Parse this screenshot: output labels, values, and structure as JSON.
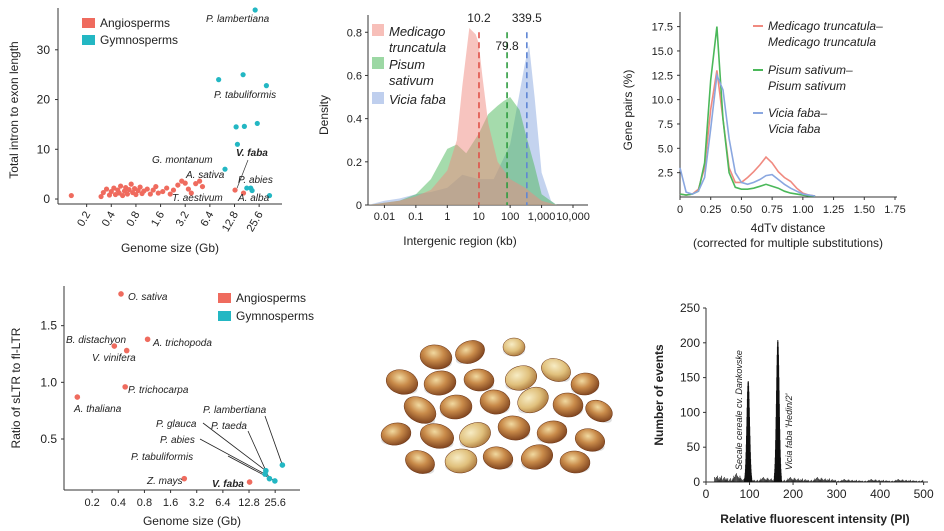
{
  "colors": {
    "angiosperm": "#ef6b5e",
    "gymnosperm": "#23b7c3",
    "medicago": "#f08a80",
    "pisum": "#4bb85a",
    "vicia": "#8aa7e0",
    "peak_dark": "#111111",
    "bean_base": "#b86a34",
    "bean_light": "#e6c98d"
  },
  "panels": {
    "a": {
      "xlabel": "Genome size (Gb)",
      "ylabel": "Total intron to exon length",
      "legend": [
        "Angiosperms",
        "Gymnosperms"
      ]
    },
    "b": {
      "xlabel": "Intergenic region (kb)",
      "ylabel": "Density",
      "legend": [
        {
          "line1": "Medicago",
          "line2": "truncatula"
        },
        {
          "line1": "Pisum",
          "line2": "sativum"
        },
        {
          "line1": "Vicia faba",
          "line2": ""
        }
      ],
      "medians": [
        "10.2",
        "79.8",
        "339.5"
      ]
    },
    "c": {
      "xlabel": "4dTv distance",
      "xlabel2": "(corrected for multiple substitutions)",
      "ylabel": "Gene pairs (%)",
      "legend": [
        {
          "line1": "Medicago truncatula–",
          "line2": "Medicago truncatula"
        },
        {
          "line1": "Pisum sativum–",
          "line2": "Pisum sativum"
        },
        {
          "line1": "Vicia faba–",
          "line2": "Vicia faba"
        }
      ]
    },
    "d": {
      "xlabel": "Genome size (Gb)",
      "ylabel": "Ratio of sLTR to fl-LTR",
      "legend": [
        "Angiosperms",
        "Gymnosperms"
      ]
    },
    "f": {
      "xlabel": "Relative fluorescent intensity (PI)",
      "ylabel": "Number of events",
      "peak1_label": "Secale cereale cv. Dankovske",
      "peak2_label": "Vicia faba 'Hedin/2'"
    }
  },
  "chart_data": [
    {
      "id": "a",
      "type": "scatter",
      "xlabel": "Genome size (Gb)",
      "ylabel": "Total intron to exon length",
      "x_scale": "log2",
      "x_ticks": [
        "0.2",
        "0.4",
        "0.8",
        "1.6",
        "3.2",
        "6.4",
        "12.8",
        "25.6"
      ],
      "y_ticks": [
        "0",
        "10",
        "20",
        "30"
      ],
      "ylim": [
        -1,
        38
      ],
      "series": [
        {
          "name": "Angiosperms",
          "points": [
            [
              0.13,
              0.7
            ],
            [
              0.3,
              0.5
            ],
            [
              0.32,
              1.3
            ],
            [
              0.35,
              2.0
            ],
            [
              0.38,
              0.8
            ],
            [
              0.4,
              1.5
            ],
            [
              0.43,
              2.2
            ],
            [
              0.45,
              0.9
            ],
            [
              0.48,
              1.8
            ],
            [
              0.5,
              1.2
            ],
            [
              0.52,
              2.6
            ],
            [
              0.55,
              0.7
            ],
            [
              0.58,
              1.6
            ],
            [
              0.6,
              2.3
            ],
            [
              0.63,
              1.0
            ],
            [
              0.66,
              1.9
            ],
            [
              0.7,
              3.0
            ],
            [
              0.73,
              1.3
            ],
            [
              0.77,
              2.1
            ],
            [
              0.8,
              0.9
            ],
            [
              0.85,
              1.7
            ],
            [
              0.9,
              2.4
            ],
            [
              0.95,
              1.1
            ],
            [
              1.0,
              1.6
            ],
            [
              1.1,
              2.0
            ],
            [
              1.2,
              1.0
            ],
            [
              1.3,
              1.8
            ],
            [
              1.4,
              2.5
            ],
            [
              1.5,
              1.2
            ],
            [
              1.7,
              1.5
            ],
            [
              1.9,
              2.2
            ],
            [
              2.1,
              1.0
            ],
            [
              2.3,
              1.8
            ],
            [
              2.6,
              2.8
            ],
            [
              2.9,
              3.6
            ],
            [
              3.2,
              3.2
            ],
            [
              3.5,
              2.0
            ],
            [
              3.8,
              1.2
            ],
            [
              4.3,
              3.1
            ],
            [
              4.8,
              3.6
            ],
            [
              5.2,
              2.5
            ],
            [
              13.0,
              1.8
            ],
            [
              16.5,
              1.2
            ]
          ],
          "labels": [
            {
              "text": "A. sativa",
              "x": 12.8,
              "y": 3.2
            },
            {
              "text": "T. aestivum",
              "x": 16.5,
              "y": 1.2
            },
            {
              "text": "V. faba",
              "x": 13.0,
              "y": 1.8,
              "bold": true
            }
          ]
        },
        {
          "name": "Gymnosperms",
          "points": [
            [
              9.8,
              6.0
            ],
            [
              13.9,
              11.0
            ],
            [
              18.1,
              2.2
            ],
            [
              20.2,
              2.2
            ],
            [
              21.0,
              1.7
            ],
            [
              13.4,
              14.5
            ],
            [
              16.9,
              14.6
            ],
            [
              24.3,
              15.2
            ],
            [
              8.2,
              24.0
            ],
            [
              16.3,
              25.0
            ],
            [
              31.4,
              22.8
            ],
            [
              22.9,
              38.0
            ],
            [
              34.3,
              0.7
            ]
          ],
          "labels": [
            {
              "text": "P. lambertiana",
              "x": 22.9,
              "y": 38.0
            },
            {
              "text": "P. tabuliformis",
              "x": 31.4,
              "y": 22.8
            },
            {
              "text": "G. montanum",
              "x": 9.8,
              "y": 6.0
            },
            {
              "text": "P. abies",
              "x": 20.2,
              "y": 2.2
            },
            {
              "text": "A. alba",
              "x": 34.3,
              "y": 0.7
            }
          ]
        }
      ]
    },
    {
      "id": "b",
      "type": "area",
      "xlabel": "Intergenic region (kb)",
      "ylabel": "Density",
      "x_scale": "log10",
      "x_ticks": [
        "0.01",
        "0.1",
        "1",
        "10",
        "100",
        "1,000",
        "10,000"
      ],
      "y_ticks": [
        "0",
        "0.2",
        "0.4",
        "0.6",
        "0.8"
      ],
      "ylim": [
        0,
        0.88
      ],
      "series": [
        {
          "name": "Medicago truncatula",
          "median": 10.2,
          "x": [
            0.003,
            0.01,
            0.03,
            0.1,
            0.3,
            1,
            2,
            3,
            5,
            8,
            10,
            13,
            20,
            40,
            100,
            300,
            1000,
            3000
          ],
          "y": [
            0,
            0.01,
            0.02,
            0.04,
            0.07,
            0.16,
            0.3,
            0.55,
            0.82,
            0.79,
            0.75,
            0.6,
            0.38,
            0.2,
            0.12,
            0.08,
            0.02,
            0
          ]
        },
        {
          "name": "Pisum sativum",
          "median": 79.8,
          "x": [
            0.003,
            0.01,
            0.03,
            0.1,
            0.3,
            1,
            2,
            4,
            10,
            20,
            40,
            60,
            100,
            200,
            300,
            600,
            1000,
            3000
          ],
          "y": [
            0,
            0.01,
            0.02,
            0.05,
            0.12,
            0.26,
            0.28,
            0.24,
            0.33,
            0.42,
            0.46,
            0.48,
            0.5,
            0.44,
            0.34,
            0.18,
            0.05,
            0
          ]
        },
        {
          "name": "Vicia faba",
          "median": 339.5,
          "x": [
            0.003,
            0.01,
            0.03,
            0.1,
            0.3,
            1,
            3,
            10,
            30,
            100,
            200,
            300,
            400,
            600,
            1000,
            2000,
            3000
          ],
          "y": [
            0,
            0.02,
            0.03,
            0.05,
            0.06,
            0.08,
            0.14,
            0.12,
            0.12,
            0.28,
            0.52,
            0.66,
            0.74,
            0.5,
            0.15,
            0.02,
            0
          ]
        }
      ]
    },
    {
      "id": "c",
      "type": "line",
      "xlabel": "4dTv distance",
      "ylabel": "Gene pairs (%)",
      "x_ticks": [
        "0",
        "0.25",
        "0.50",
        "0.75",
        "1.00",
        "1.25",
        "1.50",
        "1.75"
      ],
      "y_ticks": [
        "2.5",
        "5.0",
        "7.5",
        "10.0",
        "12.5",
        "15.0",
        "17.5"
      ],
      "xlim": [
        0,
        1.75
      ],
      "ylim": [
        0,
        19
      ],
      "x": [
        0,
        0.05,
        0.1,
        0.15,
        0.2,
        0.25,
        0.3,
        0.35,
        0.4,
        0.45,
        0.5,
        0.55,
        0.6,
        0.65,
        0.7,
        0.75,
        0.8,
        0.85,
        0.9,
        0.95,
        1.0,
        1.05,
        1.1
      ],
      "series": [
        {
          "name": "Medicago truncatula–Medicago truncatula",
          "values": [
            0.3,
            0.2,
            0.3,
            0.8,
            3.0,
            9.0,
            13.0,
            8.0,
            3.0,
            1.5,
            1.5,
            2.0,
            2.6,
            3.3,
            4.1,
            3.5,
            2.6,
            2.0,
            1.6,
            0.9,
            0.4,
            0.2,
            0.1
          ]
        },
        {
          "name": "Pisum sativum–Pisum sativum",
          "values": [
            0.3,
            0.2,
            0.3,
            0.6,
            3.5,
            12.0,
            17.5,
            8.0,
            2.5,
            1.0,
            0.8,
            0.8,
            0.9,
            1.1,
            1.3,
            1.1,
            0.9,
            0.6,
            0.4,
            0.3,
            0.2,
            0.1,
            0.1
          ]
        },
        {
          "name": "Vicia faba–Vicia faba",
          "values": [
            3.0,
            0.5,
            0.3,
            0.6,
            2.0,
            7.0,
            12.5,
            11.0,
            6.0,
            2.5,
            1.5,
            1.3,
            1.5,
            1.8,
            2.2,
            2.3,
            1.8,
            1.3,
            0.9,
            0.6,
            0.3,
            0.2,
            0.1
          ]
        }
      ]
    },
    {
      "id": "d",
      "type": "scatter",
      "xlabel": "Genome size (Gb)",
      "ylabel": "Ratio of sLTR to fl-LTR",
      "x_scale": "log2",
      "x_ticks": [
        "0.2",
        "0.4",
        "0.8",
        "1.6",
        "3.2",
        "6.4",
        "12.8",
        "25.6"
      ],
      "y_ticks": [
        "0.5",
        "1.0",
        "1.5"
      ],
      "ylim": [
        0.05,
        1.85
      ],
      "series": [
        {
          "name": "Angiosperms",
          "points": [
            {
              "label": "O. sativa",
              "x": 0.43,
              "y": 1.78
            },
            {
              "label": "B. distachyon",
              "x": 0.36,
              "y": 1.32
            },
            {
              "label": "V. vinifera",
              "x": 0.5,
              "y": 1.28
            },
            {
              "label": "A. trichopoda",
              "x": 0.87,
              "y": 1.38
            },
            {
              "label": "P. trichocarpa",
              "x": 0.48,
              "y": 0.96
            },
            {
              "label": "A. thaliana",
              "x": 0.135,
              "y": 0.87
            },
            {
              "label": "Z. mays",
              "x": 2.3,
              "y": 0.15
            },
            {
              "label": "V. faba",
              "x": 13.0,
              "y": 0.12
            }
          ]
        },
        {
          "name": "Gymnosperms",
          "points": [
            {
              "label": "P. lambertiana",
              "x": 31.0,
              "y": 0.27
            },
            {
              "label": "P. taeda",
              "x": 22.0,
              "y": 0.15
            },
            {
              "label": "P. glauca",
              "x": 20.0,
              "y": 0.22
            },
            {
              "label": "P. abies",
              "x": 19.6,
              "y": 0.19
            },
            {
              "label": "P. tabuliformis",
              "x": 25.4,
              "y": 0.13
            }
          ]
        }
      ]
    },
    {
      "id": "f",
      "type": "histogram",
      "xlabel": "Relative fluorescent intensity (PI)",
      "ylabel": "Number of events",
      "x_ticks": [
        "0",
        "100",
        "200",
        "300",
        "400",
        "500"
      ],
      "y_ticks": [
        "0",
        "50",
        "100",
        "150",
        "200",
        "250"
      ],
      "xlim": [
        0,
        510
      ],
      "ylim": [
        0,
        250
      ],
      "peaks": [
        {
          "label": "Secale cereale cv. Dankovske",
          "x": 97,
          "height": 145
        },
        {
          "label": "Vicia faba 'Hedin/2'",
          "x": 165,
          "height": 204
        }
      ]
    }
  ]
}
